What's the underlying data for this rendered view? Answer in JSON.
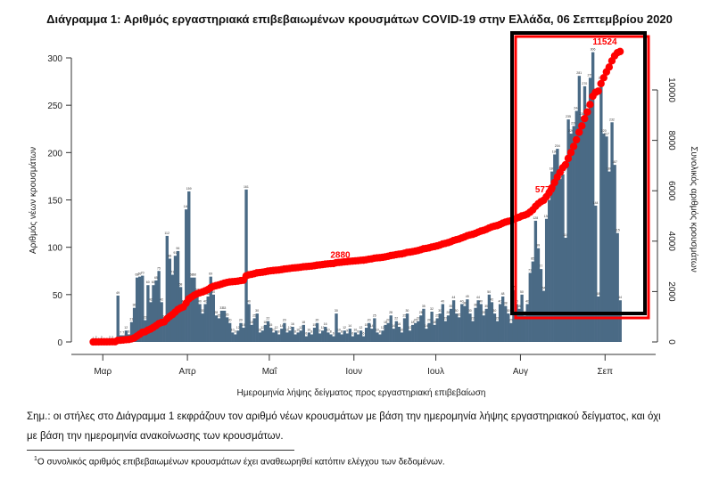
{
  "chart_data": {
    "type": "bar+line",
    "title": "Διάγραμμα 1: Αριθμός εργαστηριακά επιβεβαιωμένων κρουσμάτων COVID-19 στην Ελλάδα, 06 Σεπτεμβρίου 2020",
    "xlabel": "Ημερομηνία λήψης δείγματος προς εργαστηριακή επιβεβαίωση",
    "ylabel_left": "Αριθμός νέων κρουσμάτων",
    "ylabel_right": "Συνολικός αριθμός κρουσμάτων",
    "ylim_left": [
      0,
      300
    ],
    "yticks_left": [
      "0",
      "50",
      "100",
      "150",
      "200",
      "250",
      "300"
    ],
    "ylim_right": [
      0,
      10000
    ],
    "yticks_right": [
      "0",
      "2000",
      "4000",
      "6000",
      "8000",
      "10000"
    ],
    "xtick_labels": [
      "Μαρ",
      "Απρ",
      "Μαΐ",
      "Ιουν",
      "Ιουλ",
      "Αυγ",
      "Σεπ"
    ],
    "start_date": "2020-02-26",
    "series": [
      {
        "name": "Νέα κρούσματα",
        "type": "bar",
        "color": "#4a6a85",
        "values": [
          1,
          2,
          0,
          2,
          0,
          0,
          2,
          2,
          0,
          49,
          7,
          7,
          12,
          8,
          21,
          36,
          68,
          69,
          70,
          23,
          60,
          42,
          60,
          65,
          75,
          42,
          24,
          112,
          88,
          71,
          91,
          96,
          58,
          40,
          140,
          159,
          68,
          68,
          52,
          40,
          30,
          40,
          48,
          69,
          50,
          28,
          25,
          33,
          33,
          26,
          20,
          10,
          8,
          12,
          20,
          15,
          161,
          40,
          18,
          25,
          30,
          10,
          12,
          18,
          22,
          15,
          10,
          12,
          8,
          14,
          20,
          10,
          12,
          16,
          8,
          10,
          12,
          18,
          6,
          10,
          8,
          15,
          20,
          9,
          12,
          16,
          10,
          8,
          6,
          30,
          10,
          8,
          12,
          9,
          14,
          6,
          10,
          8,
          12,
          6,
          15,
          20,
          14,
          25,
          10,
          8,
          12,
          18,
          20,
          28,
          14,
          22,
          16,
          10,
          25,
          30,
          12,
          18,
          20,
          22,
          28,
          35,
          14,
          20,
          32,
          18,
          25,
          30,
          40,
          22,
          28,
          35,
          44,
          30,
          26,
          40,
          38,
          45,
          30,
          22,
          36,
          44,
          40,
          28,
          35,
          50,
          42,
          30,
          22,
          40,
          48,
          38,
          30,
          20,
          55,
          40,
          35,
          50,
          28,
          40,
          73,
          85,
          128,
          99,
          77,
          54,
          130,
          150,
          180,
          198,
          204,
          172,
          177,
          110,
          235,
          220,
          228,
          244,
          281,
          238,
          270,
          246,
          279,
          306,
          144,
          48,
          276,
          220,
          217,
          180,
          232,
          187,
          115,
          44
        ]
      },
      {
        "name": "Συνολικά κρούσματα",
        "type": "line",
        "color": "#ff0000",
        "final_value": 11524
      }
    ],
    "annotations": [
      {
        "text": "2880",
        "date_index": 91
      },
      {
        "text": "5774",
        "date_index": 166
      },
      {
        "text": "11524",
        "date_index": 193
      }
    ]
  },
  "notes": {
    "line1": "Σημ.: οι στήλες στο Διάγραμμα 1 εκφράζουν τον αριθμό νέων κρουσμάτων με βάση την ημερομηνία λήψης εργαστηριακού δείγματος, και όχι",
    "line2": "με βάση την ημερομηνία ανακοίνωσης των κρουσμάτων.",
    "footnote_mark": "1",
    "footnote": "Ο συνολικός αριθμός επιβεβαιωμένων κρουσμάτων έχει αναθεωρηθεί κατόπιν ελέγχου των δεδομένων."
  }
}
